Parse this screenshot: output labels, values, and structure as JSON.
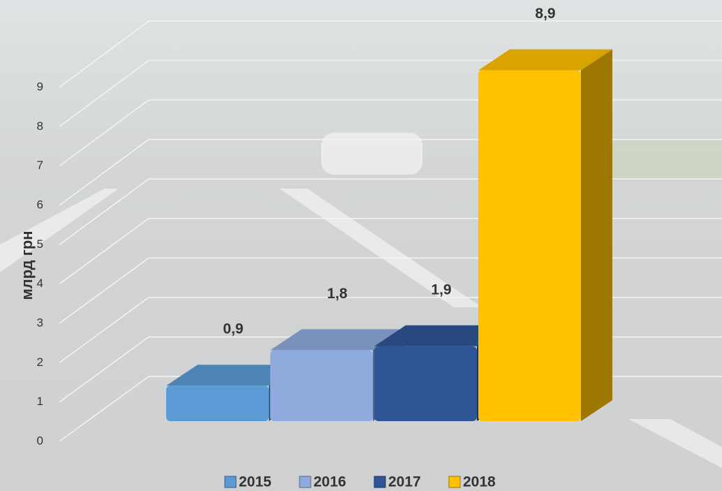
{
  "chart_data": {
    "type": "bar3d",
    "y_label": "млрд грн",
    "series": [
      {
        "name": "2015",
        "color": "#5b9bd5",
        "values": [
          0.9
        ],
        "value_labels": [
          "0,9"
        ]
      },
      {
        "name": "2016",
        "color": "#8faadc",
        "values": [
          1.8
        ],
        "value_labels": [
          "1,8"
        ]
      },
      {
        "name": "2017",
        "color": "#2f5597",
        "values": [
          1.9
        ],
        "value_labels": [
          "1,9"
        ]
      },
      {
        "name": "2018",
        "color": "#ffc000",
        "values": [
          8.9
        ],
        "value_labels": [
          "8,9"
        ]
      }
    ],
    "ylim": [
      0,
      9
    ],
    "yticks": [
      0,
      1,
      2,
      3,
      4,
      5,
      6,
      7,
      8,
      9
    ],
    "grid": true,
    "legend": "bottom"
  }
}
